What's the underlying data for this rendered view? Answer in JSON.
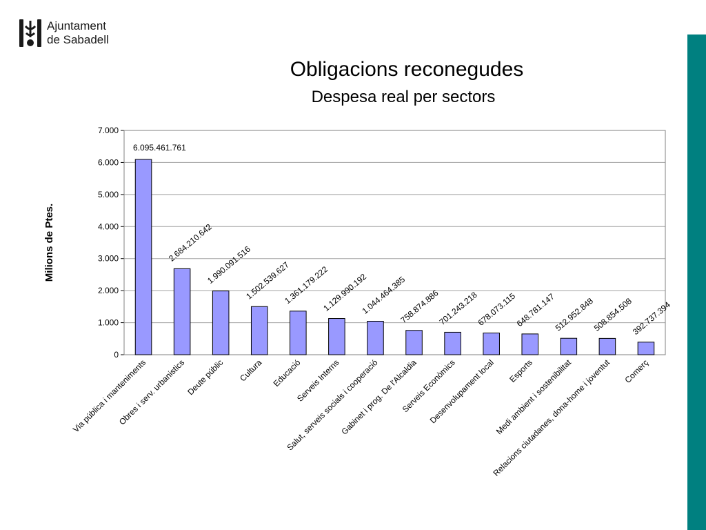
{
  "header": {
    "org_line1": "Ajuntament",
    "org_line2": "de Sabadell",
    "accent_color": "#008080"
  },
  "chart_data": {
    "type": "bar",
    "title": "Obligacions reconegudes",
    "subtitle": "Despesa real per sectors",
    "ylabel": "Milions de Ptes.",
    "xlabel": "",
    "ylim": [
      0,
      7000
    ],
    "yticks": [
      0,
      1000,
      2000,
      3000,
      4000,
      5000,
      6000,
      7000
    ],
    "ytick_labels": [
      "0",
      "1.000",
      "2.000",
      "3.000",
      "4.000",
      "5.000",
      "6.000",
      "7.000"
    ],
    "grid": true,
    "bar_color": "#9999FF",
    "categories": [
      "Via pública i manteniments",
      "Obres i serv. urbanistics",
      "Deute públic",
      "Cultura",
      "Educació",
      "Serveis Interns",
      "Salut, serveis socials i cooperació",
      "Gabinet i prog. De l'Alcaldia",
      "Serveis Econòmics",
      "Desenvolupament local",
      "Esports",
      "Medi ambient i sostenibilitat",
      "Relacions ciutadanes, dona-home i joventut",
      "Comerç"
    ],
    "values": [
      6095.461761,
      2684.210642,
      1990.091516,
      1502.539627,
      1361.179222,
      1129.990192,
      1044.464385,
      758.874886,
      701.243218,
      678.073115,
      648.781147,
      512.952848,
      508.854508,
      392.737394
    ],
    "data_labels": [
      "6.095.461.761",
      "2.684.210.642",
      "1.990.091.516",
      "1.502.539.627",
      "1.361.179.222",
      "1.129.990.192",
      "1.044.464.385",
      "758.874.886",
      "701.243.218",
      "678.073.115",
      "648.781.147",
      "512.952.848",
      "508.854.508",
      "392.737.394"
    ]
  }
}
